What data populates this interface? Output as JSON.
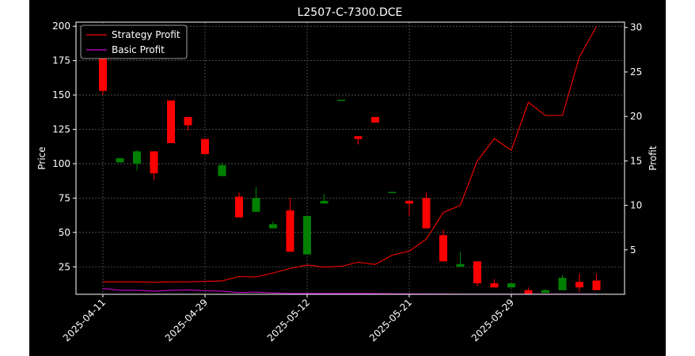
{
  "chart_data": {
    "type": "candlestick",
    "title": "L2507-C-7300.DCE",
    "xlabel": "",
    "ylabel_left": "Price",
    "ylabel_right": "Profit",
    "ylim_left": [
      5,
      203
    ],
    "ylim_right": [
      0.0,
      30.6
    ],
    "yticks_left": [
      25,
      50,
      75,
      100,
      125,
      150,
      175,
      200
    ],
    "yticks_right": [
      5,
      10,
      15,
      20,
      25,
      30
    ],
    "xticks": [
      {
        "index": 0,
        "label": "2025-04-11"
      },
      {
        "index": 6,
        "label": "2025-04-29"
      },
      {
        "index": 12,
        "label": "2025-05-12"
      },
      {
        "index": 18,
        "label": "2025-05-21"
      },
      {
        "index": 24,
        "label": "2025-05-29"
      }
    ],
    "grid": true,
    "legend_position": "upper-left",
    "colors": {
      "up": "#008000",
      "down": "#ff0000",
      "strategy": "#ff0000",
      "basic": "#cc00cc",
      "grid": "#5a5a5a",
      "axis": "#ffffff"
    },
    "candles": [
      {
        "i": 0,
        "open": 200,
        "close": 153,
        "high": 200,
        "low": 150
      },
      {
        "i": 1,
        "open": 101,
        "close": 104,
        "high": 104,
        "low": 101
      },
      {
        "i": 2,
        "open": 100,
        "close": 109,
        "high": 110,
        "low": 95
      },
      {
        "i": 3,
        "open": 109,
        "close": 93,
        "high": 109,
        "low": 88
      },
      {
        "i": 4,
        "open": 146,
        "close": 115,
        "high": 146,
        "low": 115
      },
      {
        "i": 5,
        "open": 134,
        "close": 128,
        "high": 134,
        "low": 124
      },
      {
        "i": 6,
        "open": 118,
        "close": 107,
        "high": 118,
        "low": 107
      },
      {
        "i": 7,
        "open": 91,
        "close": 99,
        "high": 101,
        "low": 91
      },
      {
        "i": 8,
        "open": 76,
        "close": 61,
        "high": 79,
        "low": 61
      },
      {
        "i": 9,
        "open": 65,
        "close": 75,
        "high": 83,
        "low": 65
      },
      {
        "i": 10,
        "open": 53,
        "close": 56,
        "high": 58,
        "low": 53
      },
      {
        "i": 11,
        "open": 66,
        "close": 36,
        "high": 75,
        "low": 36
      },
      {
        "i": 12,
        "open": 34,
        "close": 62,
        "high": 62,
        "low": 34
      },
      {
        "i": 13,
        "open": 71,
        "close": 73,
        "high": 78,
        "low": 71
      },
      {
        "i": 14,
        "open": 146,
        "close": 146.5,
        "high": 146.5,
        "low": 146
      },
      {
        "i": 15,
        "open": 120,
        "close": 118,
        "high": 120,
        "low": 114
      },
      {
        "i": 16,
        "open": 134,
        "close": 130,
        "high": 134,
        "low": 130
      },
      {
        "i": 17,
        "open": 79,
        "close": 79.5,
        "high": 79.5,
        "low": 79
      },
      {
        "i": 18,
        "open": 73,
        "close": 71,
        "high": 73,
        "low": 62
      },
      {
        "i": 19,
        "open": 75,
        "close": 53,
        "high": 79,
        "low": 53
      },
      {
        "i": 20,
        "open": 48,
        "close": 29,
        "high": 52,
        "low": 29
      },
      {
        "i": 21,
        "open": 25,
        "close": 27,
        "high": 36,
        "low": 25
      },
      {
        "i": 22,
        "open": 29,
        "close": 13,
        "high": 29,
        "low": 11
      },
      {
        "i": 23,
        "open": 13,
        "close": 10,
        "high": 16,
        "low": 10
      },
      {
        "i": 24,
        "open": 10,
        "close": 13,
        "high": 13,
        "low": 10
      },
      {
        "i": 25,
        "open": 8,
        "close": 5,
        "high": 10,
        "low": 5
      },
      {
        "i": 26,
        "open": 6,
        "close": 8,
        "high": 9,
        "low": 6
      },
      {
        "i": 27,
        "open": 8,
        "close": 17,
        "high": 19,
        "low": 8
      },
      {
        "i": 28,
        "open": 14,
        "close": 10,
        "high": 20,
        "low": 7
      },
      {
        "i": 29,
        "open": 15,
        "close": 8,
        "high": 20,
        "low": 8
      }
    ],
    "series": [
      {
        "name": "Strategy Profit",
        "axis": "right",
        "values": [
          1.4,
          1.4,
          1.4,
          1.35,
          1.4,
          1.4,
          1.45,
          1.5,
          2.0,
          1.95,
          2.4,
          2.9,
          3.3,
          3.05,
          3.15,
          3.6,
          3.35,
          4.4,
          4.85,
          6.2,
          9.2,
          10.0,
          15.0,
          17.5,
          16.2,
          21.6,
          20.1,
          20.1,
          26.7,
          30.1
        ]
      },
      {
        "name": "Basic Profit",
        "axis": "right",
        "values": [
          0.65,
          0.45,
          0.45,
          0.35,
          0.45,
          0.5,
          0.4,
          0.35,
          0.2,
          0.25,
          0.15,
          0.1,
          0.1,
          0.1,
          0.1,
          0.1,
          0.08,
          0.06,
          0.05,
          0.04,
          0.03,
          0.02,
          0.02,
          0.02,
          0.02,
          0.02,
          0.02,
          0.02,
          0.02,
          0.02
        ]
      }
    ]
  }
}
